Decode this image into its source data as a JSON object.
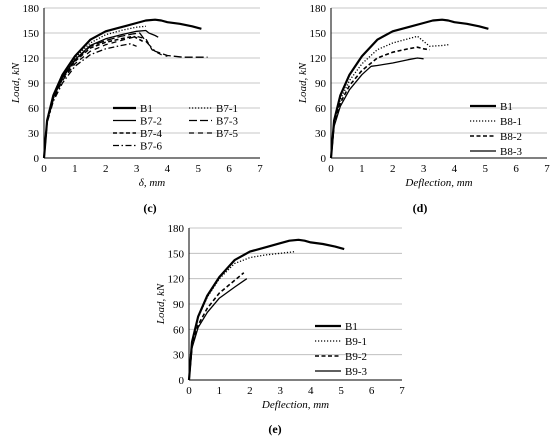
{
  "chart_data": [
    {
      "panel_label": "(c)",
      "type": "line",
      "xlabel": "δ, mm",
      "ylabel": "Load, kN",
      "xlim": [
        0,
        7
      ],
      "ylim": [
        0,
        180
      ],
      "xticks": [
        "0",
        "1",
        "2",
        "3",
        "4",
        "5",
        "6",
        "7"
      ],
      "yticks": [
        "0",
        "30",
        "60",
        "90",
        "120",
        "150",
        "180"
      ],
      "legend": "lower-center, two columns",
      "series": [
        {
          "name": "B1",
          "style": "solid-thick",
          "x": [
            0,
            0.1,
            0.3,
            0.6,
            1.0,
            1.5,
            2.0,
            2.5,
            3.0,
            3.3,
            3.6,
            3.8,
            4.0,
            4.4,
            4.8,
            5.1
          ],
          "y": [
            0,
            45,
            75,
            100,
            122,
            142,
            152,
            157,
            162,
            165,
            166,
            165,
            163,
            161,
            158,
            155
          ]
        },
        {
          "name": "B7-1",
          "style": "dotted",
          "x": [
            0,
            0.1,
            0.3,
            0.6,
            1.0,
            1.5,
            2.0,
            2.5,
            3.0,
            3.3
          ],
          "y": [
            0,
            45,
            73,
            98,
            120,
            138,
            148,
            153,
            157,
            158
          ]
        },
        {
          "name": "B7-2",
          "style": "solid",
          "x": [
            0,
            0.1,
            0.3,
            0.6,
            1.0,
            1.5,
            2.0,
            2.5,
            3.0,
            3.3,
            3.4,
            3.6,
            3.7
          ],
          "y": [
            0,
            45,
            73,
            97,
            118,
            135,
            143,
            148,
            152,
            153,
            150,
            147,
            145
          ]
        },
        {
          "name": "B7-3",
          "style": "long-dash",
          "x": [
            0,
            0.1,
            0.3,
            0.6,
            1.0,
            1.5,
            2.0,
            2.5,
            2.9,
            3.1,
            3.3,
            3.6,
            4.0,
            4.5,
            5.0,
            5.3
          ],
          "y": [
            0,
            44,
            72,
            96,
            117,
            134,
            141,
            146,
            149,
            150,
            140,
            128,
            123,
            121,
            121,
            121
          ]
        },
        {
          "name": "B7-4",
          "style": "dashed",
          "x": [
            0,
            0.1,
            0.3,
            0.6,
            1.0,
            1.5,
            2.0,
            2.5,
            2.9,
            3.0,
            3.2
          ],
          "y": [
            0,
            44,
            72,
            95,
            116,
            132,
            139,
            143,
            146,
            144,
            140
          ]
        },
        {
          "name": "B7-5",
          "style": "dash-long-gap",
          "x": [
            0,
            0.1,
            0.3,
            0.6,
            1.0,
            1.5,
            2.0,
            2.5,
            3.0,
            3.3,
            3.5,
            3.8,
            4.0
          ],
          "y": [
            0,
            43,
            70,
            93,
            113,
            128,
            136,
            141,
            146,
            143,
            130,
            124,
            122
          ]
        },
        {
          "name": "B7-6",
          "style": "dash-dot",
          "x": [
            0,
            0.1,
            0.3,
            0.6,
            1.0,
            1.5,
            2.0,
            2.5,
            2.8,
            3.0
          ],
          "y": [
            0,
            42,
            68,
            90,
            110,
            124,
            131,
            135,
            137,
            134
          ]
        }
      ]
    },
    {
      "panel_label": "(d)",
      "type": "line",
      "xlabel": "Deflection, mm",
      "ylabel": "Load, kN",
      "xlim": [
        0,
        7
      ],
      "ylim": [
        0,
        180
      ],
      "xticks": [
        "0",
        "1",
        "2",
        "3",
        "4",
        "5",
        "6",
        "7"
      ],
      "yticks": [
        "0",
        "30",
        "60",
        "90",
        "120",
        "150",
        "180"
      ],
      "legend": "lower-right",
      "series": [
        {
          "name": "B1",
          "style": "solid-thick",
          "x": [
            0,
            0.1,
            0.3,
            0.6,
            1.0,
            1.5,
            2.0,
            2.5,
            3.0,
            3.3,
            3.6,
            3.8,
            4.0,
            4.4,
            4.8,
            5.1
          ],
          "y": [
            0,
            45,
            75,
            100,
            122,
            142,
            152,
            157,
            162,
            165,
            166,
            165,
            163,
            161,
            158,
            155
          ]
        },
        {
          "name": "B8-1",
          "style": "dotted",
          "x": [
            0,
            0.1,
            0.3,
            0.6,
            1.0,
            1.5,
            2.0,
            2.5,
            2.8,
            3.0,
            3.2,
            3.6,
            3.8
          ],
          "y": [
            0,
            42,
            70,
            93,
            113,
            130,
            138,
            143,
            146,
            140,
            134,
            135,
            136
          ]
        },
        {
          "name": "B8-2",
          "style": "dashed",
          "x": [
            0,
            0.1,
            0.3,
            0.6,
            1.0,
            1.5,
            2.0,
            2.5,
            2.8,
            3.0,
            3.2
          ],
          "y": [
            0,
            40,
            66,
            87,
            105,
            120,
            127,
            131,
            133,
            131,
            130
          ]
        },
        {
          "name": "B8-3",
          "style": "solid",
          "x": [
            0,
            0.1,
            0.3,
            0.6,
            1.0,
            1.3,
            1.5,
            2.0,
            2.5,
            2.8,
            3.0
          ],
          "y": [
            0,
            38,
            62,
            82,
            100,
            110,
            111,
            114,
            118,
            120,
            119
          ]
        }
      ]
    },
    {
      "panel_label": "(e)",
      "type": "line",
      "xlabel": "Deflection, mm",
      "ylabel": "Load, kN",
      "xlim": [
        0,
        7
      ],
      "ylim": [
        0,
        180
      ],
      "xticks": [
        "0",
        "1",
        "2",
        "3",
        "4",
        "5",
        "6",
        "7"
      ],
      "yticks": [
        "0",
        "30",
        "60",
        "90",
        "120",
        "150",
        "180"
      ],
      "legend": "lower-right",
      "series": [
        {
          "name": "B1",
          "style": "solid-thick",
          "x": [
            0,
            0.1,
            0.3,
            0.6,
            1.0,
            1.5,
            2.0,
            2.5,
            3.0,
            3.3,
            3.6,
            3.8,
            4.0,
            4.4,
            4.8,
            5.1
          ],
          "y": [
            0,
            45,
            75,
            100,
            122,
            142,
            152,
            157,
            162,
            165,
            166,
            165,
            163,
            161,
            158,
            155
          ]
        },
        {
          "name": "B9-1",
          "style": "dotted",
          "x": [
            0,
            0.1,
            0.3,
            0.6,
            1.0,
            1.5,
            2.0,
            2.5,
            3.0,
            3.5
          ],
          "y": [
            0,
            45,
            74,
            98,
            120,
            138,
            145,
            148,
            150,
            152
          ]
        },
        {
          "name": "B9-2",
          "style": "dashed",
          "x": [
            0,
            0.1,
            0.3,
            0.6,
            1.0,
            1.5,
            1.8
          ],
          "y": [
            0,
            40,
            65,
            85,
            103,
            118,
            127
          ]
        },
        {
          "name": "B9-3",
          "style": "solid",
          "x": [
            0,
            0.1,
            0.3,
            0.6,
            1.0,
            1.5,
            1.9
          ],
          "y": [
            0,
            38,
            62,
            80,
            97,
            110,
            120
          ]
        }
      ]
    }
  ]
}
